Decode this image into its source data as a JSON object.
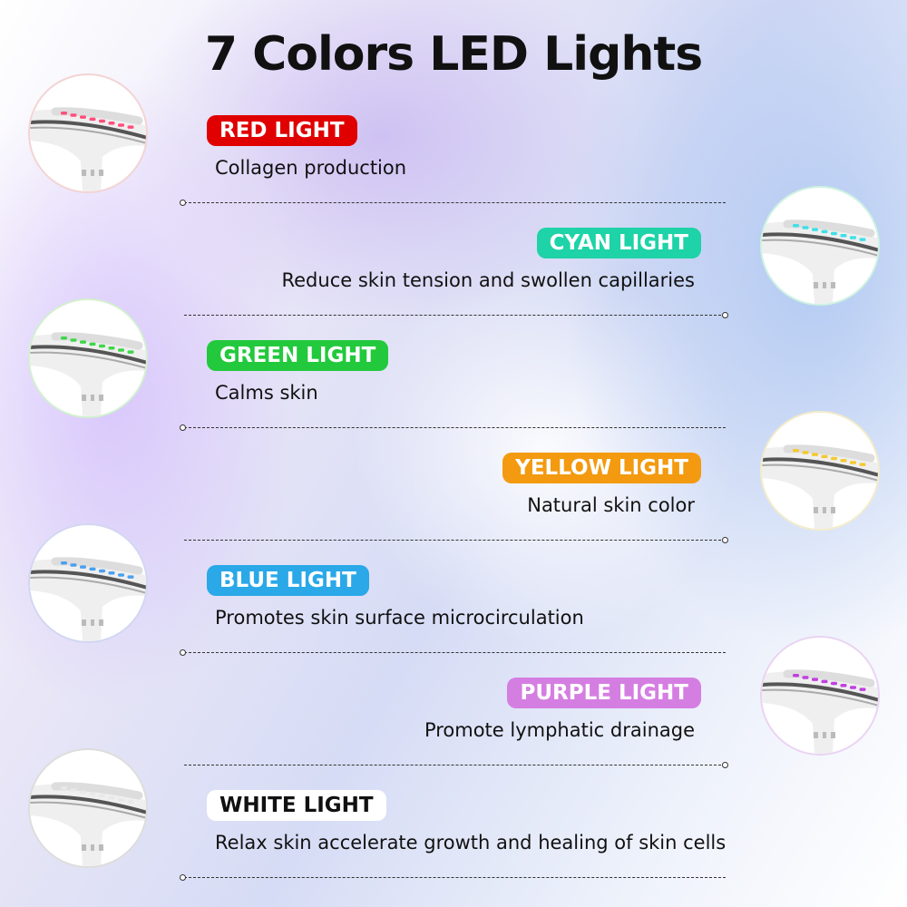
{
  "title": "7 Colors LED Lights",
  "lights": [
    {
      "label": "RED LIGHT",
      "description": "Collagen production",
      "color": "#e00000",
      "led": "#ff4f7a",
      "ring": "#f3d4d4",
      "side": "left",
      "text_color": "#ffffff"
    },
    {
      "label": "CYAN LIGHT",
      "description": "Reduce skin tension and swollen capillaries",
      "color": "#1dd3a7",
      "led": "#3fe0e8",
      "ring": "#cdf2e2",
      "side": "right",
      "text_color": "#ffffff"
    },
    {
      "label": "GREEN LIGHT",
      "description": "Calms skin",
      "color": "#22c93c",
      "led": "#3ed64a",
      "ring": "#d3f0d0",
      "side": "left",
      "text_color": "#ffffff"
    },
    {
      "label": "YELLOW LIGHT",
      "description": "Natural skin color",
      "color": "#f39a10",
      "led": "#f5c930",
      "ring": "#f3eccb",
      "side": "right",
      "text_color": "#ffffff"
    },
    {
      "label": "BLUE LIGHT",
      "description": "Promotes skin surface microcirculation",
      "color": "#2aa8e8",
      "led": "#4aa0f0",
      "ring": "#d2d7f2",
      "side": "left",
      "text_color": "#ffffff"
    },
    {
      "label": "PURPLE LIGHT",
      "description": "Promote lymphatic drainage",
      "color": "#d57ee2",
      "led": "#c040e0",
      "ring": "#ead4f2",
      "side": "right",
      "text_color": "#ffffff"
    },
    {
      "label": "WHITE LIGHT",
      "description": "Relax skin accelerate growth and healing of skin cells",
      "color": "#ffffff",
      "led": "#e8e8e8",
      "ring": "#dddddd",
      "side": "left",
      "text_color": "#111111"
    }
  ]
}
